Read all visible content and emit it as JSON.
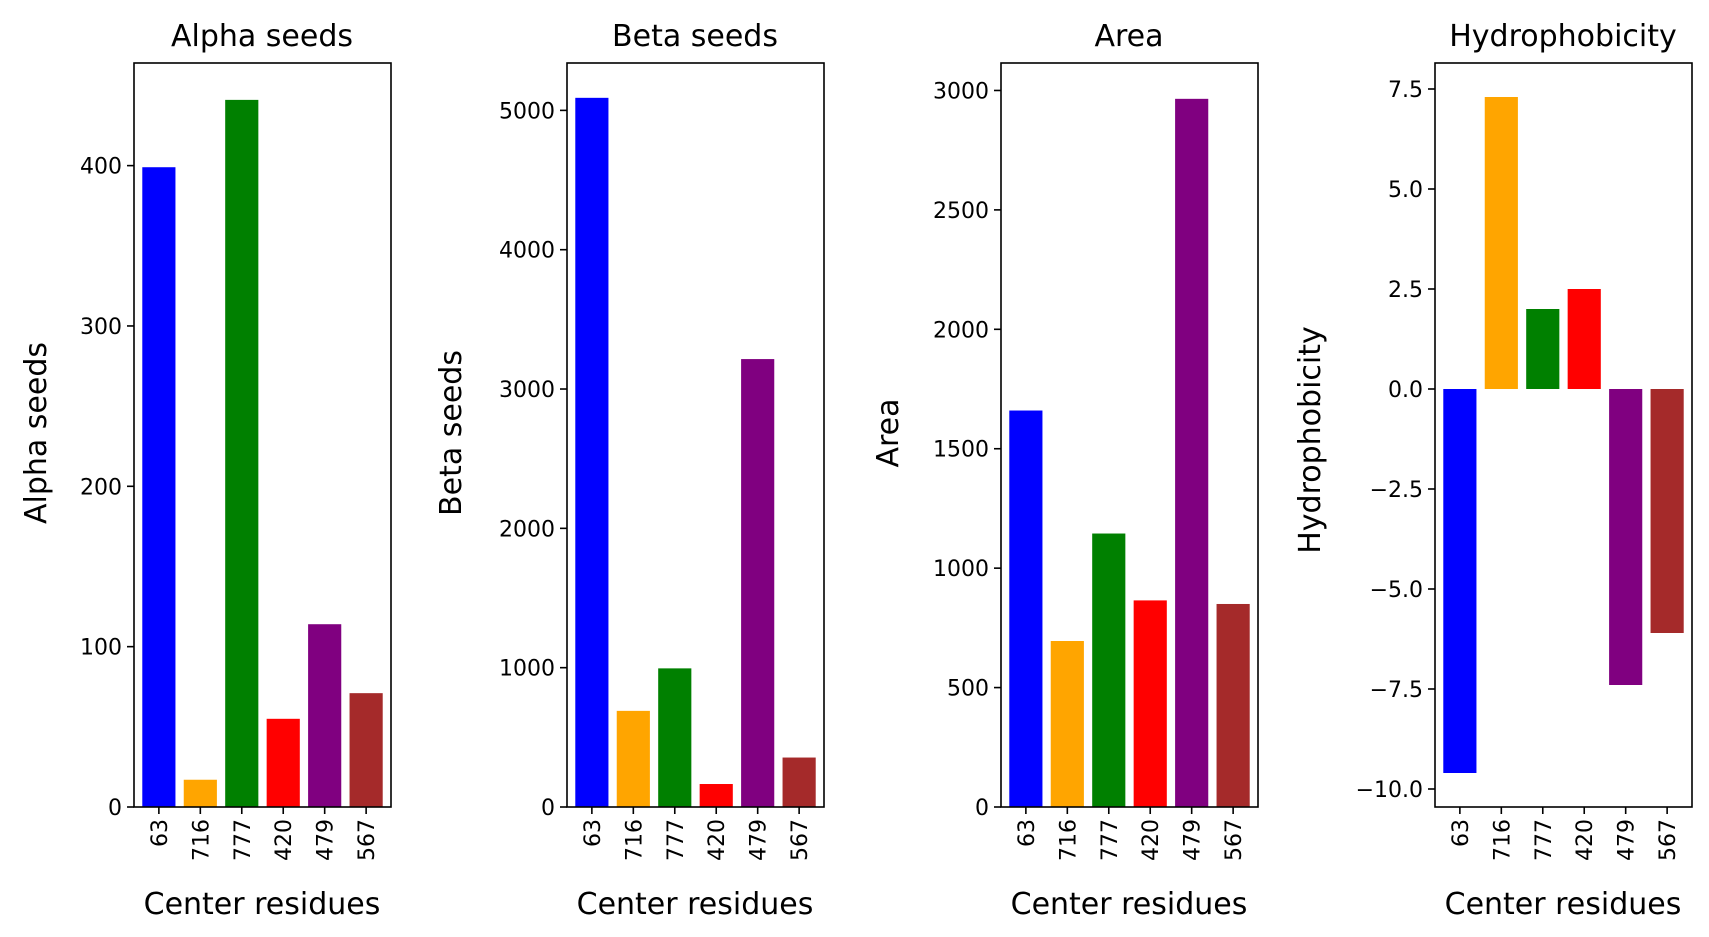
{
  "chart_data": [
    {
      "type": "bar",
      "title": "Alpha seeds",
      "xlabel": "Center residues",
      "ylabel": "Alpha seeds",
      "categories": [
        "63",
        "716",
        "777",
        "420",
        "479",
        "567"
      ],
      "values": [
        399,
        17,
        441,
        55,
        114,
        71
      ],
      "colors": [
        "#0000ff",
        "#ffa500",
        "#008000",
        "#ff0000",
        "#800080",
        "#a52a2a"
      ],
      "ylim": [
        0,
        464
      ],
      "yticks": [
        0,
        100,
        200,
        300,
        400
      ],
      "ytick_labels": [
        "0",
        "100",
        "200",
        "300",
        "400"
      ],
      "grid": false
    },
    {
      "type": "bar",
      "title": "Beta seeds",
      "xlabel": "Center residues",
      "ylabel": "Beta seeds",
      "categories": [
        "63",
        "716",
        "777",
        "420",
        "479",
        "567"
      ],
      "values": [
        5090,
        690,
        995,
        165,
        3215,
        355
      ],
      "colors": [
        "#0000ff",
        "#ffa500",
        "#008000",
        "#ff0000",
        "#800080",
        "#a52a2a"
      ],
      "ylim": [
        0,
        5340
      ],
      "yticks": [
        0,
        1000,
        2000,
        3000,
        4000,
        5000
      ],
      "ytick_labels": [
        "0",
        "1000",
        "2000",
        "3000",
        "4000",
        "5000"
      ],
      "grid": false
    },
    {
      "type": "bar",
      "title": "Area",
      "xlabel": "Center residues",
      "ylabel": "Area",
      "categories": [
        "63",
        "716",
        "777",
        "420",
        "479",
        "567"
      ],
      "values": [
        1660,
        695,
        1145,
        865,
        2965,
        850
      ],
      "colors": [
        "#0000ff",
        "#ffa500",
        "#008000",
        "#ff0000",
        "#800080",
        "#a52a2a"
      ],
      "ylim": [
        0,
        3115
      ],
      "yticks": [
        0,
        500,
        1000,
        1500,
        2000,
        2500,
        3000
      ],
      "ytick_labels": [
        "0",
        "500",
        "1000",
        "1500",
        "2000",
        "2500",
        "3000"
      ],
      "grid": false
    },
    {
      "type": "bar",
      "title": "Hydrophobicity",
      "xlabel": "Center residues",
      "ylabel": "Hydrophobicity",
      "categories": [
        "63",
        "716",
        "777",
        "420",
        "479",
        "567"
      ],
      "values": [
        -9.6,
        7.3,
        2.0,
        2.5,
        -7.4,
        -6.1
      ],
      "colors": [
        "#0000ff",
        "#ffa500",
        "#008000",
        "#ff0000",
        "#800080",
        "#a52a2a"
      ],
      "ylim": [
        -10.45,
        8.15
      ],
      "yticks": [
        -10.0,
        -7.5,
        -5.0,
        -2.5,
        0.0,
        2.5,
        5.0,
        7.5
      ],
      "ytick_labels": [
        "−10.0",
        "−7.5",
        "−5.0",
        "−2.5",
        "0.0",
        "2.5",
        "5.0",
        "7.5"
      ],
      "grid": false
    }
  ]
}
